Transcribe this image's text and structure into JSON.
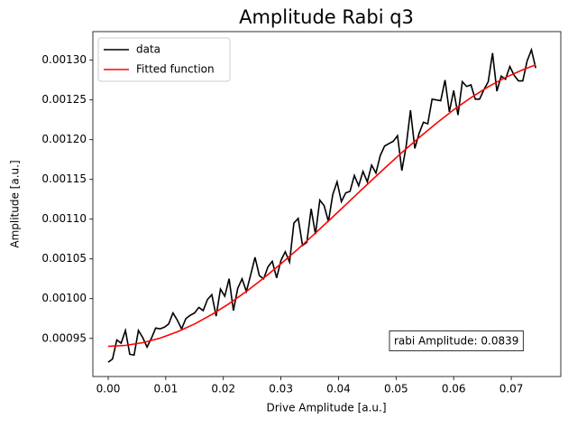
{
  "chart_data": {
    "type": "line",
    "title": "Amplitude Rabi q3",
    "xlabel": "Drive Amplitude [a.u.]",
    "ylabel": "Amplitude [a.u.]",
    "xlim": [
      -0.00266,
      0.0786
    ],
    "ylim": [
      0.000902,
      0.001336
    ],
    "xticks": [
      {
        "value": 0,
        "label": "0.00"
      },
      0.01,
      0.02,
      0.03,
      0.04,
      0.05,
      0.06,
      0.07
    ],
    "yticks": [
      0.00095,
      {
        "value": 0.001,
        "label": "0.00100"
      },
      0.00105,
      {
        "value": 0.0011,
        "label": "0.00110"
      },
      0.00115,
      {
        "value": 0.0012,
        "label": "0.00120"
      },
      0.00125,
      {
        "value": 0.0013,
        "label": "0.00130"
      }
    ],
    "legend": "upper left",
    "annotation": "rabi Amplitude: 0.0839",
    "series": [
      {
        "name": "data",
        "color": "#000000",
        "x": [
          0,
          0.00075,
          0.0015,
          0.00225,
          0.003,
          0.00375,
          0.0045,
          0.00525,
          0.006,
          0.00675,
          0.0075,
          0.00825,
          0.009,
          0.00975,
          0.0105,
          0.01125,
          0.012,
          0.01275,
          0.0135,
          0.01425,
          0.015,
          0.01575,
          0.0165,
          0.01725,
          0.018,
          0.01875,
          0.0195,
          0.02025,
          0.021,
          0.02175,
          0.0225,
          0.02325,
          0.024,
          0.02475,
          0.0255,
          0.02625,
          0.027,
          0.02775,
          0.0285,
          0.02925,
          0.03,
          0.03075,
          0.0315,
          0.03225,
          0.033,
          0.03375,
          0.0345,
          0.03525,
          0.036,
          0.03675,
          0.0375,
          0.03825,
          0.039,
          0.03975,
          0.0405,
          0.04125,
          0.042,
          0.04275,
          0.0435,
          0.04425,
          0.045,
          0.04575,
          0.0465,
          0.04725,
          0.048,
          0.04875,
          0.0495,
          0.05025,
          0.051,
          0.05175,
          0.0525,
          0.05325,
          0.054,
          0.05475,
          0.0555,
          0.05625,
          0.057,
          0.05775,
          0.0585,
          0.05925,
          0.06,
          0.06075,
          0.0615,
          0.06225,
          0.063,
          0.06375,
          0.0645,
          0.06525,
          0.066,
          0.06675,
          0.0675,
          0.06825,
          0.069,
          0.06975,
          0.0705,
          0.07125,
          0.072,
          0.07275,
          0.0735,
          0.07425
        ],
        "values": [
          0.00092,
          0.000924,
          0.000948,
          0.000944,
          0.00096,
          0.00093,
          0.000929,
          0.00096,
          0.000951,
          0.000939,
          0.00095,
          0.000963,
          0.000962,
          0.000964,
          0.000968,
          0.000982,
          0.000973,
          0.000962,
          0.000975,
          0.000979,
          0.000982,
          0.000989,
          0.000985,
          0.000999,
          0.001005,
          0.000978,
          0.001012,
          0.001003,
          0.001025,
          0.000985,
          0.001013,
          0.001025,
          0.001009,
          0.00103,
          0.001052,
          0.001029,
          0.001025,
          0.00104,
          0.001047,
          0.001026,
          0.001048,
          0.001059,
          0.001046,
          0.001095,
          0.001101,
          0.001067,
          0.001071,
          0.001113,
          0.001081,
          0.001124,
          0.001117,
          0.001097,
          0.001131,
          0.001147,
          0.001122,
          0.001133,
          0.001135,
          0.001155,
          0.001142,
          0.00116,
          0.001147,
          0.001168,
          0.001158,
          0.00118,
          0.001192,
          0.001195,
          0.001198,
          0.001205,
          0.001161,
          0.001192,
          0.001237,
          0.001189,
          0.001208,
          0.001222,
          0.00122,
          0.001251,
          0.00125,
          0.001249,
          0.001275,
          0.001235,
          0.001262,
          0.001231,
          0.001273,
          0.001267,
          0.001269,
          0.001251,
          0.001251,
          0.001263,
          0.001273,
          0.001309,
          0.001261,
          0.00128,
          0.001276,
          0.001292,
          0.001281,
          0.001274,
          0.001274,
          0.001299,
          0.001313,
          0.00129
        ]
      },
      {
        "name": "Fitted function",
        "color": "#ff0000",
        "x": [
          0,
          0.003,
          0.006,
          0.009,
          0.012,
          0.015,
          0.018,
          0.021,
          0.024,
          0.027,
          0.03,
          0.033,
          0.036,
          0.039,
          0.042,
          0.045,
          0.048,
          0.051,
          0.054,
          0.057,
          0.06,
          0.063,
          0.066,
          0.069,
          0.072,
          0.07425
        ],
        "values": [
          0.00094,
          0.0009412,
          0.0009446,
          0.0009503,
          0.0009582,
          0.0009681,
          0.00098,
          0.0009937,
          0.0010091,
          0.0010258,
          0.0010439,
          0.0010627,
          0.0010826,
          0.0011028,
          0.0011233,
          0.0011438,
          0.001164,
          0.0011838,
          0.0012027,
          0.0012207,
          0.0012376,
          0.0012529,
          0.0012666,
          0.0012783,
          0.001288,
          0.0012942
        ]
      }
    ]
  }
}
